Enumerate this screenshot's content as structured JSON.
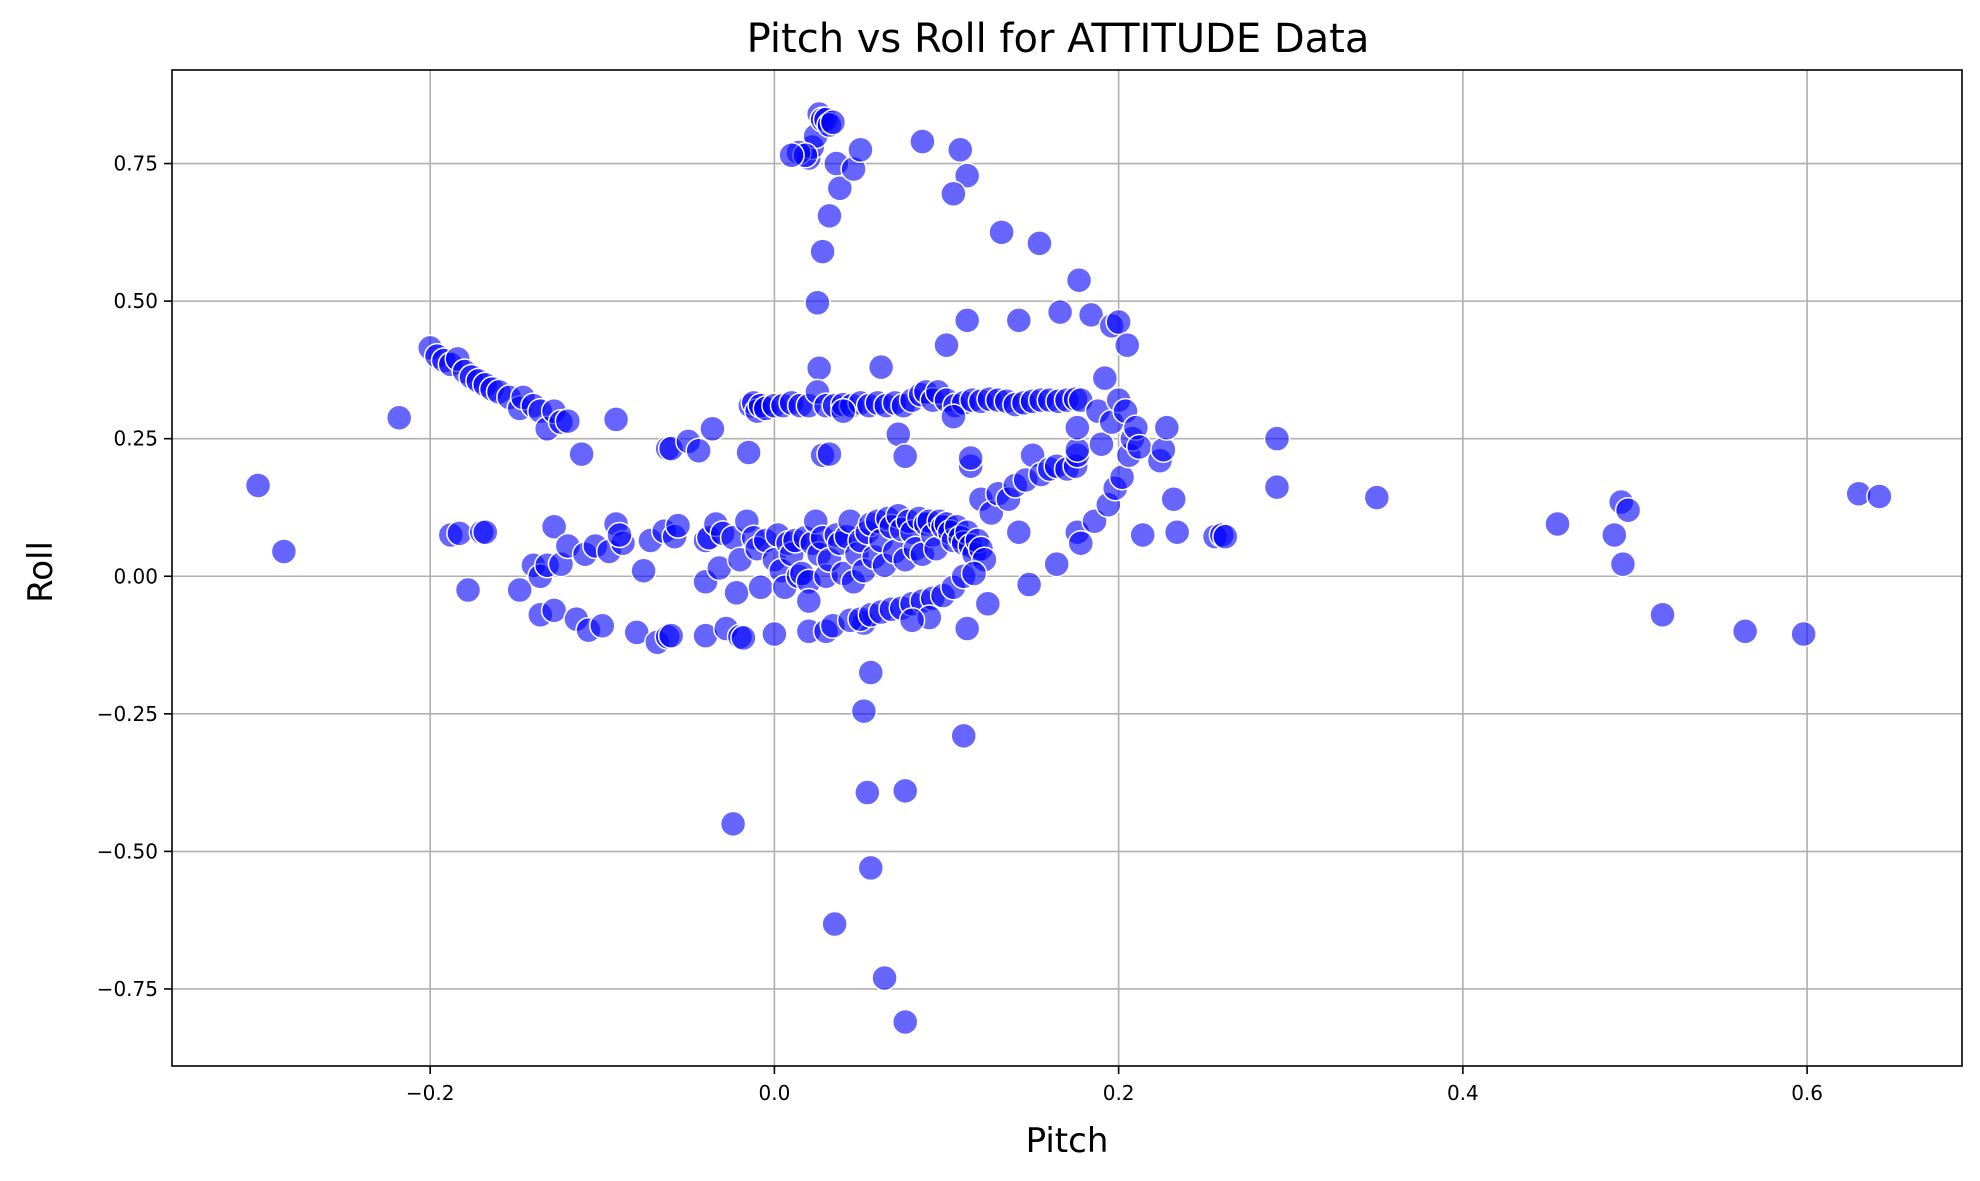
{
  "chart_data": {
    "type": "scatter",
    "title": "Pitch vs Roll for ATTITUDE Data",
    "xlabel": "Pitch",
    "ylabel": "Roll",
    "xlim": [
      -0.35,
      0.69
    ],
    "ylim": [
      -0.89,
      0.92
    ],
    "xticks": [
      -0.2,
      0.0,
      0.2,
      0.4,
      0.6
    ],
    "xtick_labels": [
      "−0.2",
      "0.0",
      "0.2",
      "0.4",
      "0.6"
    ],
    "yticks": [
      -0.75,
      -0.5,
      -0.25,
      0.0,
      0.25,
      0.5,
      0.75
    ],
    "ytick_labels": [
      "−0.75",
      "−0.50",
      "−0.25",
      "0.00",
      "0.25",
      "0.50",
      "0.75"
    ],
    "grid": true,
    "marker_color": "#0000ff",
    "marker_alpha": 0.6,
    "points": [
      [
        -0.3,
        0.165
      ],
      [
        -0.285,
        0.045
      ],
      [
        -0.218,
        0.288
      ],
      [
        -0.2,
        0.415
      ],
      [
        -0.196,
        0.4
      ],
      [
        -0.192,
        0.392
      ],
      [
        -0.188,
        0.385
      ],
      [
        -0.184,
        0.395
      ],
      [
        -0.18,
        0.372
      ],
      [
        -0.176,
        0.362
      ],
      [
        -0.172,
        0.355
      ],
      [
        -0.168,
        0.348
      ],
      [
        -0.164,
        0.34
      ],
      [
        -0.16,
        0.335
      ],
      [
        -0.154,
        0.325
      ],
      [
        -0.148,
        0.305
      ],
      [
        -0.146,
        0.325
      ],
      [
        -0.14,
        0.31
      ],
      [
        -0.136,
        0.3
      ],
      [
        -0.132,
        0.268
      ],
      [
        -0.128,
        0.3
      ],
      [
        -0.124,
        0.28
      ],
      [
        -0.12,
        0.282
      ],
      [
        -0.112,
        0.222
      ],
      [
        -0.092,
        0.285
      ],
      [
        -0.188,
        0.075
      ],
      [
        -0.183,
        0.078
      ],
      [
        -0.178,
        -0.025
      ],
      [
        -0.17,
        0.08
      ],
      [
        -0.168,
        0.08
      ],
      [
        -0.148,
        -0.025
      ],
      [
        -0.14,
        0.02
      ],
      [
        -0.136,
        0.0
      ],
      [
        -0.136,
        -0.07
      ],
      [
        -0.132,
        0.02
      ],
      [
        -0.128,
        -0.062
      ],
      [
        -0.124,
        0.022
      ],
      [
        -0.128,
        0.09
      ],
      [
        -0.12,
        0.055
      ],
      [
        -0.115,
        -0.078
      ],
      [
        -0.11,
        0.04
      ],
      [
        -0.108,
        -0.098
      ],
      [
        -0.104,
        0.055
      ],
      [
        -0.1,
        -0.09
      ],
      [
        -0.096,
        0.045
      ],
      [
        -0.092,
        0.095
      ],
      [
        -0.088,
        0.06
      ],
      [
        -0.09,
        0.075
      ],
      [
        -0.08,
        -0.102
      ],
      [
        -0.076,
        0.01
      ],
      [
        -0.072,
        0.065
      ],
      [
        -0.068,
        -0.12
      ],
      [
        -0.062,
        -0.11
      ],
      [
        -0.06,
        -0.108
      ],
      [
        -0.064,
        0.082
      ],
      [
        -0.058,
        0.072
      ],
      [
        -0.056,
        0.092
      ],
      [
        -0.062,
        0.232
      ],
      [
        -0.06,
        0.232
      ],
      [
        -0.05,
        0.245
      ],
      [
        -0.044,
        0.228
      ],
      [
        -0.036,
        0.268
      ],
      [
        -0.04,
        0.065
      ],
      [
        -0.04,
        -0.01
      ],
      [
        -0.038,
        0.07
      ],
      [
        -0.034,
        0.095
      ],
      [
        -0.04,
        -0.108
      ],
      [
        -0.032,
        0.015
      ],
      [
        -0.03,
        0.078
      ],
      [
        -0.028,
        -0.095
      ],
      [
        -0.024,
        0.07
      ],
      [
        -0.022,
        -0.03
      ],
      [
        -0.02,
        -0.11
      ],
      [
        -0.018,
        -0.112
      ],
      [
        -0.02,
        0.03
      ],
      [
        -0.016,
        0.1
      ],
      [
        -0.015,
        0.225
      ],
      [
        -0.014,
        0.31
      ],
      [
        -0.012,
        0.315
      ],
      [
        -0.01,
        0.3
      ],
      [
        -0.008,
        0.31
      ],
      [
        -0.005,
        0.305
      ],
      [
        0.0,
        0.31
      ],
      [
        0.005,
        0.31
      ],
      [
        0.01,
        0.315
      ],
      [
        0.015,
        0.31
      ],
      [
        0.02,
        0.31
      ],
      [
        -0.012,
        0.07
      ],
      [
        -0.01,
        0.05
      ],
      [
        -0.008,
        -0.02
      ],
      [
        -0.005,
        0.065
      ],
      [
        0.0,
        -0.105
      ],
      [
        0.0,
        0.03
      ],
      [
        0.002,
        0.075
      ],
      [
        0.004,
        0.01
      ],
      [
        0.006,
        -0.02
      ],
      [
        0.008,
        0.06
      ],
      [
        0.01,
        0.04
      ],
      [
        0.012,
        0.065
      ],
      [
        0.014,
        0.0
      ],
      [
        0.016,
        0.005
      ],
      [
        0.018,
        0.07
      ],
      [
        0.02,
        -0.01
      ],
      [
        0.02,
        -0.045
      ],
      [
        0.02,
        -0.1
      ],
      [
        0.022,
        0.06
      ],
      [
        0.024,
        0.1
      ],
      [
        0.026,
        0.04
      ],
      [
        0.028,
        0.07
      ],
      [
        0.03,
        0.0
      ],
      [
        0.03,
        -0.1
      ],
      [
        0.032,
        0.03
      ],
      [
        0.034,
        -0.09
      ],
      [
        0.036,
        0.075
      ],
      [
        0.038,
        0.06
      ],
      [
        0.02,
        0.76
      ],
      [
        0.022,
        0.78
      ],
      [
        0.024,
        0.8
      ],
      [
        0.026,
        0.84
      ],
      [
        0.028,
        0.83
      ],
      [
        0.03,
        0.83
      ],
      [
        0.032,
        0.82
      ],
      [
        0.034,
        0.825
      ],
      [
        0.014,
        0.77
      ],
      [
        0.018,
        0.765
      ],
      [
        0.01,
        0.765
      ],
      [
        0.036,
        0.75
      ],
      [
        0.038,
        0.705
      ],
      [
        0.046,
        0.74
      ],
      [
        0.05,
        0.775
      ],
      [
        0.032,
        0.655
      ],
      [
        0.028,
        0.59
      ],
      [
        0.025,
        0.497
      ],
      [
        0.026,
        0.378
      ],
      [
        0.025,
        0.335
      ],
      [
        0.028,
        0.22
      ],
      [
        0.032,
        0.222
      ],
      [
        0.03,
        0.31
      ],
      [
        0.035,
        0.31
      ],
      [
        0.04,
        0.312
      ],
      [
        0.045,
        0.31
      ],
      [
        0.05,
        0.315
      ],
      [
        0.055,
        0.31
      ],
      [
        0.06,
        0.315
      ],
      [
        0.065,
        0.31
      ],
      [
        0.07,
        0.315
      ],
      [
        0.075,
        0.31
      ],
      [
        0.08,
        0.32
      ],
      [
        0.085,
        0.33
      ],
      [
        0.088,
        0.335
      ],
      [
        0.092,
        0.32
      ],
      [
        0.095,
        0.335
      ],
      [
        0.1,
        0.32
      ],
      [
        0.105,
        0.31
      ],
      [
        0.11,
        0.315
      ],
      [
        0.115,
        0.32
      ],
      [
        0.12,
        0.318
      ],
      [
        0.125,
        0.322
      ],
      [
        0.13,
        0.32
      ],
      [
        0.135,
        0.318
      ],
      [
        0.14,
        0.312
      ],
      [
        0.145,
        0.315
      ],
      [
        0.15,
        0.318
      ],
      [
        0.155,
        0.32
      ],
      [
        0.16,
        0.32
      ],
      [
        0.165,
        0.318
      ],
      [
        0.17,
        0.32
      ],
      [
        0.175,
        0.322
      ],
      [
        0.178,
        0.32
      ],
      [
        0.04,
        0.3
      ],
      [
        0.062,
        0.38
      ],
      [
        0.072,
        0.258
      ],
      [
        0.076,
        0.218
      ],
      [
        0.104,
        0.29
      ],
      [
        0.1,
        0.42
      ],
      [
        0.086,
        0.79
      ],
      [
        0.108,
        0.775
      ],
      [
        0.112,
        0.728
      ],
      [
        0.104,
        0.695
      ],
      [
        0.132,
        0.625
      ],
      [
        0.154,
        0.605
      ],
      [
        0.177,
        0.538
      ],
      [
        0.112,
        0.465
      ],
      [
        0.142,
        0.465
      ],
      [
        0.166,
        0.48
      ],
      [
        0.184,
        0.475
      ],
      [
        0.196,
        0.455
      ],
      [
        0.2,
        0.462
      ],
      [
        0.205,
        0.42
      ],
      [
        0.04,
        0.005
      ],
      [
        0.042,
        0.072
      ],
      [
        0.044,
        0.1
      ],
      [
        0.046,
        -0.01
      ],
      [
        0.048,
        0.04
      ],
      [
        0.05,
        0.065
      ],
      [
        0.052,
        -0.085
      ],
      [
        0.052,
        0.01
      ],
      [
        0.054,
        0.08
      ],
      [
        0.056,
        0.095
      ],
      [
        0.058,
        0.035
      ],
      [
        0.06,
        0.1
      ],
      [
        0.062,
        0.065
      ],
      [
        0.064,
        0.02
      ],
      [
        0.066,
        0.105
      ],
      [
        0.068,
        0.09
      ],
      [
        0.07,
        0.045
      ],
      [
        0.072,
        0.11
      ],
      [
        0.074,
        0.085
      ],
      [
        0.076,
        0.03
      ],
      [
        0.078,
        0.1
      ],
      [
        0.08,
        0.08
      ],
      [
        0.082,
        0.05
      ],
      [
        0.084,
        0.105
      ],
      [
        0.086,
        0.04
      ],
      [
        0.088,
        0.095
      ],
      [
        0.09,
        0.1
      ],
      [
        0.092,
        0.075
      ],
      [
        0.094,
        0.05
      ],
      [
        0.096,
        0.1
      ],
      [
        0.098,
        0.09
      ],
      [
        0.1,
        0.095
      ],
      [
        0.102,
        0.08
      ],
      [
        0.104,
        0.065
      ],
      [
        0.106,
        0.09
      ],
      [
        0.108,
        0.07
      ],
      [
        0.11,
        0.06
      ],
      [
        0.112,
        0.08
      ],
      [
        0.114,
        0.055
      ],
      [
        0.116,
        0.04
      ],
      [
        0.118,
        0.065
      ],
      [
        0.12,
        0.05
      ],
      [
        0.122,
        0.03
      ],
      [
        0.044,
        -0.08
      ],
      [
        0.05,
        -0.078
      ],
      [
        0.056,
        -0.07
      ],
      [
        0.062,
        -0.065
      ],
      [
        0.068,
        -0.06
      ],
      [
        0.074,
        -0.058
      ],
      [
        0.08,
        -0.05
      ],
      [
        0.086,
        -0.045
      ],
      [
        0.092,
        -0.04
      ],
      [
        0.098,
        -0.035
      ],
      [
        0.104,
        -0.02
      ],
      [
        0.11,
        0.0
      ],
      [
        0.116,
        0.005
      ],
      [
        0.112,
        -0.095
      ],
      [
        0.124,
        -0.05
      ],
      [
        0.09,
        -0.075
      ],
      [
        0.08,
        -0.08
      ],
      [
        0.052,
        -0.245
      ],
      [
        0.056,
        -0.175
      ],
      [
        0.054,
        -0.393
      ],
      [
        0.076,
        -0.39
      ],
      [
        0.11,
        -0.29
      ],
      [
        0.056,
        -0.53
      ],
      [
        0.035,
        -0.632
      ],
      [
        0.064,
        -0.73
      ],
      [
        0.076,
        -0.81
      ],
      [
        -0.024,
        -0.45
      ],
      [
        0.114,
        0.2
      ],
      [
        0.114,
        0.215
      ],
      [
        0.12,
        0.14
      ],
      [
        0.126,
        0.115
      ],
      [
        0.13,
        0.15
      ],
      [
        0.136,
        0.14
      ],
      [
        0.14,
        0.165
      ],
      [
        0.142,
        0.08
      ],
      [
        0.146,
        0.175
      ],
      [
        0.148,
        -0.015
      ],
      [
        0.15,
        0.22
      ],
      [
        0.155,
        0.185
      ],
      [
        0.16,
        0.195
      ],
      [
        0.164,
        0.2
      ],
      [
        0.164,
        0.022
      ],
      [
        0.17,
        0.195
      ],
      [
        0.175,
        0.2
      ],
      [
        0.176,
        0.08
      ],
      [
        0.176,
        0.22
      ],
      [
        0.178,
        0.06
      ],
      [
        0.176,
        0.23
      ],
      [
        0.176,
        0.27
      ],
      [
        0.186,
        0.1
      ],
      [
        0.188,
        0.3
      ],
      [
        0.19,
        0.24
      ],
      [
        0.192,
        0.36
      ],
      [
        0.194,
        0.13
      ],
      [
        0.196,
        0.28
      ],
      [
        0.198,
        0.16
      ],
      [
        0.2,
        0.32
      ],
      [
        0.202,
        0.18
      ],
      [
        0.204,
        0.3
      ],
      [
        0.206,
        0.22
      ],
      [
        0.208,
        0.25
      ],
      [
        0.21,
        0.27
      ],
      [
        0.212,
        0.235
      ],
      [
        0.214,
        0.075
      ],
      [
        0.224,
        0.21
      ],
      [
        0.226,
        0.23
      ],
      [
        0.228,
        0.27
      ],
      [
        0.232,
        0.14
      ],
      [
        0.234,
        0.08
      ],
      [
        0.256,
        0.072
      ],
      [
        0.26,
        0.075
      ],
      [
        0.262,
        0.072
      ],
      [
        0.292,
        0.25
      ],
      [
        0.292,
        0.162
      ],
      [
        0.35,
        0.143
      ],
      [
        0.455,
        0.095
      ],
      [
        0.488,
        0.075
      ],
      [
        0.492,
        0.135
      ],
      [
        0.493,
        0.022
      ],
      [
        0.496,
        0.12
      ],
      [
        0.516,
        -0.07
      ],
      [
        0.564,
        -0.1
      ],
      [
        0.598,
        -0.105
      ],
      [
        0.63,
        0.15
      ],
      [
        0.642,
        0.145
      ]
    ]
  }
}
